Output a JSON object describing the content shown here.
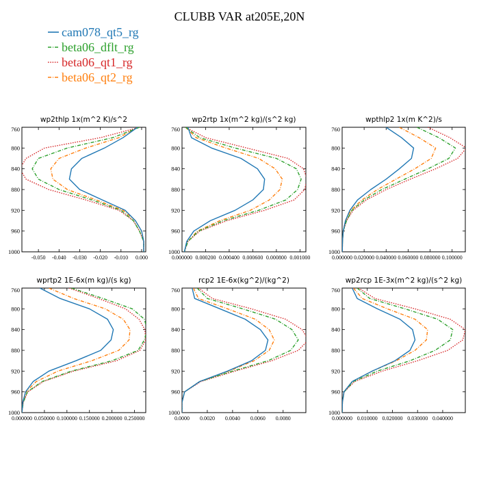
{
  "figure": {
    "title": "CLUBB VAR at205E,20N",
    "legend": [
      {
        "name": "cam078_qt5_rg",
        "color": "#1f77b4",
        "dash": "solid"
      },
      {
        "name": "beta06_dflt_rg",
        "color": "#2ca02c",
        "dash": "dashdot"
      },
      {
        "name": "beta06_qt1_rg",
        "color": "#d62728",
        "dash": "dotted"
      },
      {
        "name": "beta06_qt2_rg",
        "color": "#ff7f0e",
        "dash": "dashdot"
      }
    ]
  },
  "chart_data": [
    {
      "type": "line",
      "title": "wp2thlp  1x(m^2 K)/s^2",
      "y": [
        760,
        780,
        800,
        820,
        840,
        860,
        880,
        900,
        920,
        940,
        960,
        980,
        1000
      ],
      "ylim": [
        1000,
        760
      ],
      "yticks": [
        "760",
        "800",
        "840",
        "880",
        "920",
        "960",
        "1000"
      ],
      "xlim": [
        -0.058,
        0.002
      ],
      "xticks": [
        {
          "v": -0.05,
          "label": "-0.050"
        },
        {
          "v": -0.04,
          "label": "-0.040"
        },
        {
          "v": -0.03,
          "label": "-0.030"
        },
        {
          "v": -0.02,
          "label": "-0.020"
        },
        {
          "v": -0.01,
          "label": "-0.010"
        },
        {
          "v": 0.0,
          "label": "0.000"
        }
      ],
      "series": [
        {
          "name": "cam078_qt5_rg",
          "x": [
            -0.002,
            -0.009,
            -0.018,
            -0.029,
            -0.034,
            -0.035,
            -0.03,
            -0.019,
            -0.008,
            -0.003,
            0.0,
            0.001,
            0.001
          ]
        },
        {
          "name": "beta06_dflt_rg",
          "x": [
            -0.001,
            -0.014,
            -0.036,
            -0.05,
            -0.053,
            -0.05,
            -0.04,
            -0.024,
            -0.01,
            -0.004,
            -0.001,
            0.001,
            0.001
          ]
        },
        {
          "name": "beta06_qt1_rg",
          "x": [
            -0.001,
            -0.02,
            -0.047,
            -0.056,
            -0.059,
            -0.056,
            -0.045,
            -0.027,
            -0.011,
            -0.004,
            -0.001,
            0.001,
            0.001
          ]
        },
        {
          "name": "beta06_qt2_rg",
          "x": [
            -0.002,
            -0.011,
            -0.027,
            -0.04,
            -0.044,
            -0.043,
            -0.036,
            -0.022,
            -0.009,
            -0.003,
            0.0,
            0.001,
            0.001
          ]
        }
      ]
    },
    {
      "type": "line",
      "title": "wp2rtp  1x(m^2 kg)/(s^2 kg)",
      "y": [
        760,
        780,
        800,
        820,
        840,
        860,
        880,
        900,
        920,
        940,
        960,
        980,
        1000
      ],
      "ylim": [
        1000,
        760
      ],
      "yticks": [
        "760",
        "800",
        "840",
        "880",
        "920",
        "960",
        "1000"
      ],
      "xlim": [
        0.0,
        0.00105
      ],
      "xticks": [
        {
          "v": 0.0,
          "label": "0.000000"
        },
        {
          "v": 0.0002,
          "label": "0.000200"
        },
        {
          "v": 0.0004,
          "label": "0.000400"
        },
        {
          "v": 0.0006,
          "label": "0.000600"
        },
        {
          "v": 0.0008,
          "label": "0.000800"
        },
        {
          "v": 0.001,
          "label": "0.001000"
        }
      ],
      "series": [
        {
          "name": "cam078_qt5_rg",
          "x": [
            5e-05,
            8e-05,
            0.00025,
            0.0005,
            0.00064,
            0.0007,
            0.00069,
            0.0006,
            0.00045,
            0.00024,
            0.0001,
            4e-05,
            2e-05
          ]
        },
        {
          "name": "beta06_dflt_rg",
          "x": [
            3e-05,
            0.00015,
            0.00045,
            0.0008,
            0.00097,
            0.00101,
            0.00098,
            0.00088,
            0.00065,
            0.00035,
            0.00014,
            5e-05,
            2e-05
          ]
        },
        {
          "name": "beta06_qt1_rg",
          "x": [
            3e-05,
            0.0002,
            0.00055,
            0.0009,
            0.00103,
            0.00106,
            0.00104,
            0.00095,
            0.0007,
            0.00038,
            0.00015,
            5e-05,
            2e-05
          ]
        },
        {
          "name": "beta06_qt2_rg",
          "x": [
            3e-05,
            0.00012,
            0.00037,
            0.00065,
            0.00079,
            0.00085,
            0.00083,
            0.00074,
            0.00058,
            0.00032,
            0.00013,
            5e-05,
            2e-05
          ]
        }
      ]
    },
    {
      "type": "line",
      "title": "wpthlp2  1x(m K^2)/s",
      "y": [
        760,
        780,
        800,
        820,
        840,
        860,
        880,
        900,
        920,
        940,
        960,
        980,
        1000
      ],
      "ylim": [
        1000,
        760
      ],
      "yticks": [
        "760",
        "800",
        "840",
        "880",
        "920",
        "960",
        "1000"
      ],
      "xlim": [
        0.0,
        0.112
      ],
      "xticks": [
        {
          "v": 0.0,
          "label": "0.000000"
        },
        {
          "v": 0.02,
          "label": "0.020000"
        },
        {
          "v": 0.04,
          "label": "0.040000"
        },
        {
          "v": 0.06,
          "label": "0.060000"
        },
        {
          "v": 0.08,
          "label": "0.080000"
        },
        {
          "v": 0.1,
          "label": "0.100000"
        }
      ],
      "series": [
        {
          "name": "cam078_qt5_rg",
          "x": [
            0.04,
            0.054,
            0.065,
            0.063,
            0.052,
            0.04,
            0.026,
            0.014,
            0.007,
            0.003,
            0.001,
            0.0003,
            0.0001
          ]
        },
        {
          "name": "beta06_dflt_rg",
          "x": [
            0.068,
            0.088,
            0.103,
            0.097,
            0.078,
            0.057,
            0.036,
            0.02,
            0.009,
            0.004,
            0.001,
            0.0003,
            0.0001
          ]
        },
        {
          "name": "beta06_qt1_rg",
          "x": [
            0.078,
            0.098,
            0.113,
            0.105,
            0.085,
            0.062,
            0.04,
            0.022,
            0.01,
            0.004,
            0.001,
            0.0003,
            0.0001
          ]
        },
        {
          "name": "beta06_qt2_rg",
          "x": [
            0.052,
            0.07,
            0.085,
            0.081,
            0.066,
            0.049,
            0.032,
            0.018,
            0.008,
            0.003,
            0.001,
            0.0003,
            0.0001
          ]
        }
      ]
    },
    {
      "type": "line",
      "title": "wprtp2  1E-6x(m kg)/(s kg)",
      "y": [
        760,
        780,
        800,
        820,
        840,
        860,
        880,
        900,
        920,
        940,
        960,
        980,
        1000
      ],
      "ylim": [
        1000,
        760
      ],
      "yticks": [
        "760",
        "800",
        "840",
        "880",
        "920",
        "960",
        "1000"
      ],
      "xlim": [
        0.0,
        0.275
      ],
      "xticks": [
        {
          "v": 0.0,
          "label": "0.000000"
        },
        {
          "v": 0.05,
          "label": "0.050000"
        },
        {
          "v": 0.1,
          "label": "0.100000"
        },
        {
          "v": 0.15,
          "label": "0.150000"
        },
        {
          "v": 0.2,
          "label": "0.200000"
        },
        {
          "v": 0.25,
          "label": "0.250000"
        }
      ],
      "series": [
        {
          "name": "cam078_qt5_rg",
          "x": [
            0.04,
            0.085,
            0.15,
            0.19,
            0.203,
            0.198,
            0.175,
            0.12,
            0.06,
            0.025,
            0.008,
            0.002,
            0.0
          ]
        },
        {
          "name": "beta06_dflt_rg",
          "x": [
            0.11,
            0.18,
            0.245,
            0.272,
            0.278,
            0.272,
            0.258,
            0.2,
            0.11,
            0.045,
            0.012,
            0.003,
            0.0
          ]
        },
        {
          "name": "beta06_qt1_rg",
          "x": [
            0.105,
            0.17,
            0.23,
            0.26,
            0.273,
            0.275,
            0.262,
            0.21,
            0.115,
            0.048,
            0.013,
            0.003,
            0.0
          ]
        },
        {
          "name": "beta06_qt2_rg",
          "x": [
            0.06,
            0.115,
            0.185,
            0.225,
            0.24,
            0.238,
            0.215,
            0.155,
            0.08,
            0.032,
            0.009,
            0.002,
            0.0
          ]
        }
      ]
    },
    {
      "type": "line",
      "title": "rcp2  1E-6x(kg^2)/(kg^2)",
      "y": [
        760,
        780,
        800,
        820,
        840,
        860,
        880,
        900,
        920,
        940,
        960,
        980,
        1000
      ],
      "ylim": [
        1000,
        760
      ],
      "yticks": [
        "760",
        "800",
        "840",
        "880",
        "920",
        "960",
        "1000"
      ],
      "xlim": [
        0.0,
        0.0098
      ],
      "xticks": [
        {
          "v": 0.0,
          "label": "0.0000"
        },
        {
          "v": 0.002,
          "label": "0.0020"
        },
        {
          "v": 0.004,
          "label": "0.0040"
        },
        {
          "v": 0.006,
          "label": "0.0060"
        },
        {
          "v": 0.008,
          "label": "0.0080"
        }
      ],
      "series": [
        {
          "name": "cam078_qt5_rg",
          "x": [
            0.0008,
            0.001,
            0.003,
            0.005,
            0.0062,
            0.0068,
            0.0066,
            0.0055,
            0.0036,
            0.0014,
            0.0002,
            0.0,
            0.0
          ]
        },
        {
          "name": "beta06_dflt_rg",
          "x": [
            0.0012,
            0.002,
            0.0048,
            0.0074,
            0.0087,
            0.0092,
            0.0086,
            0.0068,
            0.004,
            0.0014,
            0.0002,
            0.0,
            0.0
          ]
        },
        {
          "name": "beta06_qt1_rg",
          "x": [
            0.0013,
            0.0024,
            0.0055,
            0.0082,
            0.0095,
            0.01,
            0.0092,
            0.0071,
            0.0042,
            0.0015,
            0.0002,
            0.0,
            0.0
          ]
        },
        {
          "name": "beta06_qt2_rg",
          "x": [
            0.0009,
            0.0013,
            0.0036,
            0.0058,
            0.0069,
            0.0073,
            0.0069,
            0.0057,
            0.0037,
            0.0014,
            0.0002,
            0.0,
            0.0
          ]
        }
      ]
    },
    {
      "type": "line",
      "title": "wp2rcp  1E-3x(m^2 kg)/(s^2 kg)",
      "y": [
        760,
        780,
        800,
        820,
        840,
        860,
        880,
        900,
        920,
        940,
        960,
        980,
        1000
      ],
      "ylim": [
        1000,
        760
      ],
      "yticks": [
        "760",
        "800",
        "840",
        "880",
        "920",
        "960",
        "1000"
      ],
      "xlim": [
        0.0,
        0.049
      ],
      "xticks": [
        {
          "v": 0.0,
          "label": "0.000000"
        },
        {
          "v": 0.01,
          "label": "0.010000"
        },
        {
          "v": 0.02,
          "label": "0.020000"
        },
        {
          "v": 0.03,
          "label": "0.030000"
        },
        {
          "v": 0.04,
          "label": "0.040000"
        }
      ],
      "series": [
        {
          "name": "cam078_qt5_rg",
          "x": [
            0.004,
            0.006,
            0.014,
            0.023,
            0.028,
            0.029,
            0.027,
            0.021,
            0.012,
            0.004,
            0.0007,
            0.0001,
            0.0
          ]
        },
        {
          "name": "beta06_dflt_rg",
          "x": [
            0.006,
            0.011,
            0.025,
            0.038,
            0.044,
            0.043,
            0.037,
            0.027,
            0.014,
            0.0045,
            0.0008,
            0.0001,
            0.0
          ]
        },
        {
          "name": "beta06_qt1_rg",
          "x": [
            0.0065,
            0.013,
            0.029,
            0.043,
            0.049,
            0.048,
            0.042,
            0.03,
            0.016,
            0.005,
            0.0008,
            0.0001,
            0.0
          ]
        },
        {
          "name": "beta06_qt2_rg",
          "x": [
            0.0045,
            0.008,
            0.018,
            0.029,
            0.034,
            0.0335,
            0.029,
            0.0215,
            0.012,
            0.004,
            0.0007,
            0.0001,
            0.0
          ]
        }
      ]
    }
  ]
}
